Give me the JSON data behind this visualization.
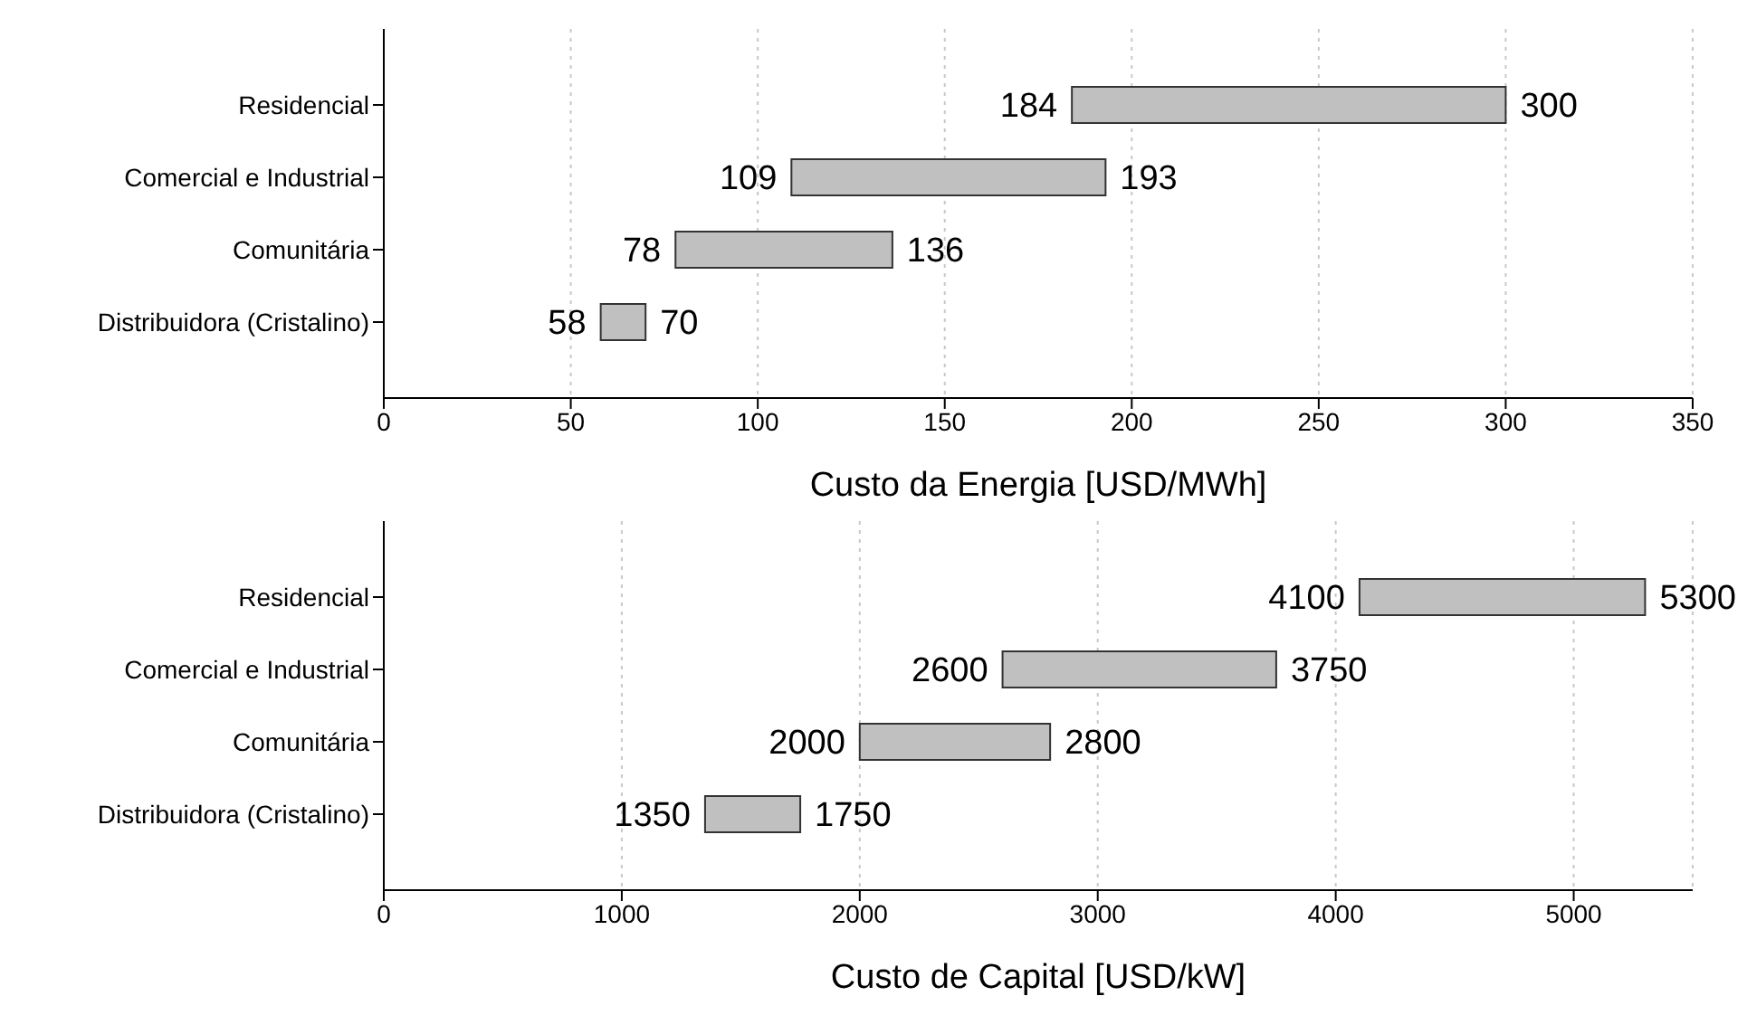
{
  "chart_data": [
    {
      "type": "bar",
      "orientation": "horizontal",
      "xlabel": "Custo da Energia [USD/MWh]",
      "categories": [
        "Residencial",
        "Comercial e Industrial",
        "Comunitária",
        "Distribuidora (Cristalino)"
      ],
      "base": [
        184,
        109,
        78,
        58
      ],
      "values": [
        116,
        84,
        58,
        12
      ],
      "color": "#c0c0c0",
      "xlim": [
        0,
        350
      ],
      "xticks": [
        0,
        50,
        100,
        150,
        200,
        250,
        300,
        350
      ],
      "grid": "x",
      "annotations": [
        {
          "text": "184",
          "x": 184,
          "y": "Residencial"
        },
        {
          "text": "300",
          "x": 300,
          "y": "Residencial"
        },
        {
          "text": "109",
          "x": 109,
          "y": "Comercial e Industrial"
        },
        {
          "text": "193",
          "x": 193,
          "y": "Comercial e Industrial"
        },
        {
          "text": "78",
          "x": 78,
          "y": "Comunitária"
        },
        {
          "text": "136",
          "x": 136,
          "y": "Comunitária"
        },
        {
          "text": "58",
          "x": 58,
          "y": "Distribuidora (Cristalino)"
        },
        {
          "text": "70",
          "x": 70,
          "y": "Distribuidora (Cristalino)"
        }
      ]
    },
    {
      "type": "bar",
      "orientation": "horizontal",
      "xlabel": "Custo de Capital [USD/kW]",
      "categories": [
        "Residencial",
        "Comercial e Industrial",
        "Comunitária",
        "Distribuidora (Cristalino)"
      ],
      "base": [
        4100,
        2600,
        2000,
        1350
      ],
      "values": [
        1200,
        1150,
        800,
        400
      ],
      "color": "#c0c0c0",
      "xlim": [
        0,
        5500
      ],
      "xticks": [
        0,
        1000,
        2000,
        3000,
        4000,
        5000
      ],
      "grid": "x",
      "annotations": [
        {
          "text": "4100",
          "x": 4100,
          "y": "Residencial"
        },
        {
          "text": "5300",
          "x": 5300,
          "y": "Residencial"
        },
        {
          "text": "2600",
          "x": 2600,
          "y": "Comercial e Industrial"
        },
        {
          "text": "3750",
          "x": 3750,
          "y": "Comercial e Industrial"
        },
        {
          "text": "2000",
          "x": 2000,
          "y": "Comunitária"
        },
        {
          "text": "2800",
          "x": 2800,
          "y": "Comunitária"
        },
        {
          "text": "1350",
          "x": 1350,
          "y": "Distribuidora (Cristalino)"
        },
        {
          "text": "1750",
          "x": 1750,
          "y": "Distribuidora (Cristalino)"
        }
      ]
    }
  ]
}
